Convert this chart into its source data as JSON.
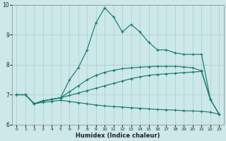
{
  "xlabel": "Humidex (Indice chaleur)",
  "background_color": "#cce8e8",
  "grid_color": "#aacccc",
  "line_color": "#1a7a6e",
  "xlim": [
    -0.5,
    23.5
  ],
  "ylim": [
    6,
    10
  ],
  "xticks": [
    0,
    1,
    2,
    3,
    4,
    5,
    6,
    7,
    8,
    9,
    10,
    11,
    12,
    13,
    14,
    15,
    16,
    17,
    18,
    19,
    20,
    21,
    22,
    23
  ],
  "yticks": [
    6,
    7,
    8,
    9,
    10
  ],
  "line1_y": [
    7.0,
    7.0,
    6.7,
    6.8,
    6.85,
    6.9,
    7.5,
    7.9,
    8.5,
    9.4,
    9.9,
    9.6,
    9.1,
    9.35,
    9.1,
    8.75,
    8.5,
    8.5,
    8.4,
    8.35,
    8.35,
    8.35,
    6.85,
    null
  ],
  "line2_y": [
    7.0,
    7.0,
    6.7,
    6.8,
    6.85,
    6.9,
    7.1,
    7.3,
    7.5,
    7.65,
    7.75,
    7.82,
    7.87,
    7.9,
    7.92,
    7.94,
    7.95,
    7.95,
    7.95,
    7.93,
    7.9,
    7.8,
    6.85,
    6.35
  ],
  "line3_y": [
    7.0,
    7.0,
    6.7,
    6.8,
    6.85,
    6.9,
    6.98,
    7.06,
    7.14,
    7.22,
    7.3,
    7.38,
    7.46,
    7.54,
    7.6,
    7.65,
    7.68,
    7.7,
    7.72,
    7.74,
    7.76,
    7.78,
    6.85,
    6.35
  ],
  "line4_y": [
    7.0,
    7.0,
    6.7,
    6.75,
    6.78,
    6.82,
    6.78,
    6.74,
    6.7,
    6.66,
    6.63,
    6.61,
    6.59,
    6.57,
    6.55,
    6.53,
    6.51,
    6.5,
    6.49,
    6.47,
    6.46,
    6.45,
    6.42,
    6.35
  ]
}
